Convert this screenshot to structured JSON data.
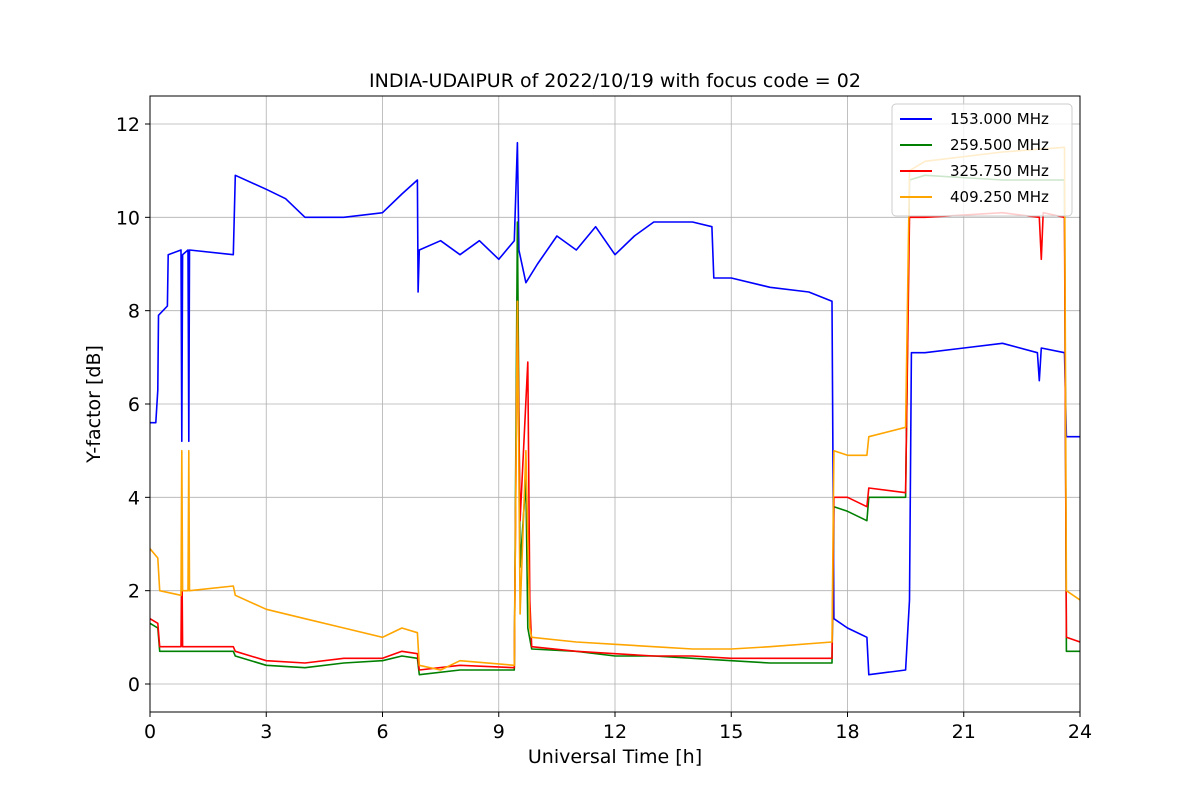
{
  "chart_data": {
    "type": "line",
    "title": "INDIA-UDAIPUR of 2022/10/19 with focus code = 02",
    "xlabel": "Universal Time [h]",
    "ylabel": "Y-factor [dB]",
    "xlim": [
      0,
      24
    ],
    "ylim": [
      -0.6,
      12.6
    ],
    "xticks": [
      0,
      3,
      6,
      9,
      12,
      15,
      18,
      21,
      24
    ],
    "xtick_labels": [
      "0",
      "3",
      "6",
      "9",
      "12",
      "15",
      "18",
      "21",
      "24"
    ],
    "yticks": [
      0,
      2,
      4,
      6,
      8,
      10,
      12
    ],
    "ytick_labels": [
      "0",
      "2",
      "4",
      "6",
      "8",
      "10",
      "12"
    ],
    "grid": true,
    "legend_position": "top-right",
    "series": [
      {
        "name": "153.000 MHz",
        "color": "#0000ff",
        "points": [
          [
            0,
            5.6
          ],
          [
            0.15,
            5.6
          ],
          [
            0.2,
            6.3
          ],
          [
            0.22,
            7.9
          ],
          [
            0.45,
            8.1
          ],
          [
            0.47,
            9.2
          ],
          [
            0.8,
            9.3
          ],
          [
            0.82,
            5.2
          ],
          [
            0.84,
            9.2
          ],
          [
            0.98,
            9.3
          ],
          [
            1.0,
            5.2
          ],
          [
            1.02,
            9.3
          ],
          [
            2.15,
            9.2
          ],
          [
            2.2,
            10.9
          ],
          [
            3.0,
            10.6
          ],
          [
            3.5,
            10.4
          ],
          [
            4.0,
            10.0
          ],
          [
            5.0,
            10.0
          ],
          [
            6.0,
            10.1
          ],
          [
            6.5,
            10.5
          ],
          [
            6.9,
            10.8
          ],
          [
            6.92,
            8.4
          ],
          [
            6.95,
            9.3
          ],
          [
            7.5,
            9.5
          ],
          [
            8.0,
            9.2
          ],
          [
            8.5,
            9.5
          ],
          [
            9.0,
            9.1
          ],
          [
            9.4,
            9.5
          ],
          [
            9.48,
            11.6
          ],
          [
            9.52,
            9.3
          ],
          [
            9.7,
            8.6
          ],
          [
            10.0,
            9.0
          ],
          [
            10.5,
            9.6
          ],
          [
            11.0,
            9.3
          ],
          [
            11.5,
            9.8
          ],
          [
            12.0,
            9.2
          ],
          [
            12.5,
            9.6
          ],
          [
            13.0,
            9.9
          ],
          [
            14.0,
            9.9
          ],
          [
            14.5,
            9.8
          ],
          [
            14.55,
            8.7
          ],
          [
            15.0,
            8.7
          ],
          [
            16.0,
            8.5
          ],
          [
            17.0,
            8.4
          ],
          [
            17.6,
            8.2
          ],
          [
            17.65,
            1.4
          ],
          [
            18.0,
            1.2
          ],
          [
            18.5,
            1.0
          ],
          [
            18.55,
            0.2
          ],
          [
            19.5,
            0.3
          ],
          [
            19.6,
            1.8
          ],
          [
            19.65,
            7.1
          ],
          [
            20.0,
            7.1
          ],
          [
            21.0,
            7.2
          ],
          [
            22.0,
            7.3
          ],
          [
            22.9,
            7.1
          ],
          [
            22.95,
            6.5
          ],
          [
            23.0,
            7.2
          ],
          [
            23.6,
            7.1
          ],
          [
            23.65,
            5.3
          ],
          [
            24.0,
            5.3
          ]
        ]
      },
      {
        "name": "259.500 MHz",
        "color": "#008000",
        "points": [
          [
            0,
            1.3
          ],
          [
            0.2,
            1.2
          ],
          [
            0.25,
            0.7
          ],
          [
            2.15,
            0.7
          ],
          [
            2.2,
            0.6
          ],
          [
            3.0,
            0.4
          ],
          [
            4.0,
            0.35
          ],
          [
            5.0,
            0.45
          ],
          [
            6.0,
            0.5
          ],
          [
            6.5,
            0.6
          ],
          [
            6.9,
            0.55
          ],
          [
            6.95,
            0.2
          ],
          [
            8.0,
            0.3
          ],
          [
            9.4,
            0.3
          ],
          [
            9.48,
            9.9
          ],
          [
            9.55,
            2.5
          ],
          [
            9.7,
            4.4
          ],
          [
            9.75,
            1.2
          ],
          [
            9.85,
            0.75
          ],
          [
            11.0,
            0.7
          ],
          [
            12.0,
            0.6
          ],
          [
            13.0,
            0.6
          ],
          [
            14.0,
            0.55
          ],
          [
            15.0,
            0.5
          ],
          [
            16.0,
            0.45
          ],
          [
            17.6,
            0.45
          ],
          [
            17.65,
            3.8
          ],
          [
            18.0,
            3.7
          ],
          [
            18.5,
            3.5
          ],
          [
            18.55,
            4.0
          ],
          [
            19.5,
            4.0
          ],
          [
            19.6,
            10.8
          ],
          [
            20.0,
            10.9
          ],
          [
            22.0,
            10.8
          ],
          [
            23.6,
            10.8
          ],
          [
            23.65,
            0.7
          ],
          [
            24.0,
            0.7
          ]
        ]
      },
      {
        "name": "325.750 MHz",
        "color": "#ff0000",
        "points": [
          [
            0,
            1.4
          ],
          [
            0.2,
            1.3
          ],
          [
            0.25,
            0.8
          ],
          [
            0.8,
            0.8
          ],
          [
            0.82,
            3.0
          ],
          [
            0.84,
            0.8
          ],
          [
            2.15,
            0.8
          ],
          [
            2.2,
            0.7
          ],
          [
            3.0,
            0.5
          ],
          [
            4.0,
            0.45
          ],
          [
            5.0,
            0.55
          ],
          [
            6.0,
            0.55
          ],
          [
            6.5,
            0.7
          ],
          [
            6.9,
            0.65
          ],
          [
            6.95,
            0.3
          ],
          [
            8.0,
            0.4
          ],
          [
            9.4,
            0.35
          ],
          [
            9.48,
            8.2
          ],
          [
            9.55,
            3.5
          ],
          [
            9.75,
            6.9
          ],
          [
            9.8,
            1.8
          ],
          [
            9.85,
            0.8
          ],
          [
            11.0,
            0.7
          ],
          [
            12.0,
            0.65
          ],
          [
            13.0,
            0.6
          ],
          [
            14.0,
            0.6
          ],
          [
            15.0,
            0.55
          ],
          [
            16.0,
            0.55
          ],
          [
            17.6,
            0.55
          ],
          [
            17.65,
            4.0
          ],
          [
            18.0,
            4.0
          ],
          [
            18.5,
            3.8
          ],
          [
            18.55,
            4.2
          ],
          [
            19.5,
            4.1
          ],
          [
            19.6,
            10.0
          ],
          [
            20.0,
            10.0
          ],
          [
            22.0,
            10.1
          ],
          [
            22.95,
            10.0
          ],
          [
            23.0,
            9.1
          ],
          [
            23.05,
            10.1
          ],
          [
            23.6,
            10.0
          ],
          [
            23.65,
            1.0
          ],
          [
            24.0,
            0.9
          ]
        ]
      },
      {
        "name": "409.250 MHz",
        "color": "#ffa500",
        "points": [
          [
            0,
            2.9
          ],
          [
            0.2,
            2.7
          ],
          [
            0.25,
            2.0
          ],
          [
            0.8,
            1.9
          ],
          [
            0.82,
            5.0
          ],
          [
            0.84,
            2.0
          ],
          [
            0.98,
            2.0
          ],
          [
            1.0,
            5.0
          ],
          [
            1.02,
            2.0
          ],
          [
            2.15,
            2.1
          ],
          [
            2.2,
            1.9
          ],
          [
            3.0,
            1.6
          ],
          [
            4.0,
            1.4
          ],
          [
            5.0,
            1.2
          ],
          [
            6.0,
            1.0
          ],
          [
            6.5,
            1.2
          ],
          [
            6.9,
            1.1
          ],
          [
            6.95,
            0.4
          ],
          [
            7.5,
            0.3
          ],
          [
            8.0,
            0.5
          ],
          [
            9.4,
            0.4
          ],
          [
            9.48,
            8.2
          ],
          [
            9.55,
            1.5
          ],
          [
            9.7,
            5.0
          ],
          [
            9.8,
            1.2
          ],
          [
            9.85,
            1.0
          ],
          [
            11.0,
            0.9
          ],
          [
            12.0,
            0.85
          ],
          [
            13.0,
            0.8
          ],
          [
            14.0,
            0.75
          ],
          [
            15.0,
            0.75
          ],
          [
            16.0,
            0.8
          ],
          [
            17.6,
            0.9
          ],
          [
            17.65,
            5.0
          ],
          [
            18.0,
            4.9
          ],
          [
            18.5,
            4.9
          ],
          [
            18.55,
            5.3
          ],
          [
            19.5,
            5.5
          ],
          [
            19.6,
            11.0
          ],
          [
            20.0,
            11.2
          ],
          [
            22.0,
            11.4
          ],
          [
            23.6,
            11.5
          ],
          [
            23.65,
            2.0
          ],
          [
            24.0,
            1.8
          ]
        ]
      }
    ]
  }
}
